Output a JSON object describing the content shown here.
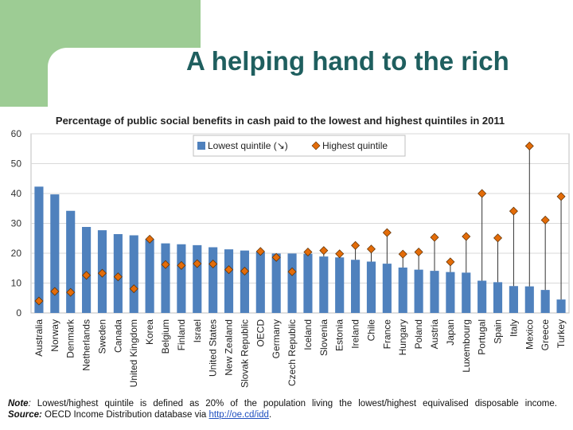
{
  "slide": {
    "title": "A helping hand to the rich",
    "accent_color": "#9dcc94",
    "title_color": "#1f5f5f"
  },
  "chart_data": {
    "type": "bar",
    "title": "Percentage of public social benefits in cash paid to the lowest and highest quintiles in 2011",
    "ylim": [
      0,
      60
    ],
    "yticks": [
      0,
      10,
      20,
      30,
      40,
      50,
      60
    ],
    "grid": true,
    "legend_position": "top-center",
    "categories": [
      "Australia",
      "Norway",
      "Denmark",
      "Netherlands",
      "Sweden",
      "Canada",
      "United Kingdom",
      "Korea",
      "Belgium",
      "Finland",
      "Israel",
      "United States",
      "New Zealand",
      "Slovak Republic",
      "OECD",
      "Germany",
      "Czech Republic",
      "Iceland",
      "Slovenia",
      "Estonia",
      "Ireland",
      "Chile",
      "France",
      "Hungary",
      "Poland",
      "Austria",
      "Japan",
      "Luxembourg",
      "Portugal",
      "Spain",
      "Italy",
      "Mexico",
      "Greece",
      "Turkey"
    ],
    "series": [
      {
        "name": "Lowest quintile (↘)",
        "kind": "bar",
        "color": "#4f81bd",
        "values": [
          42.3,
          39.7,
          34.2,
          28.8,
          27.7,
          26.4,
          26.0,
          24.8,
          23.3,
          23.0,
          22.7,
          22.0,
          21.3,
          20.9,
          20.5,
          19.9,
          19.9,
          19.8,
          18.9,
          18.6,
          17.8,
          17.2,
          16.5,
          15.2,
          14.5,
          14.1,
          13.7,
          13.5,
          10.8,
          10.3,
          9.0,
          8.9,
          7.7,
          4.5
        ]
      },
      {
        "name": "Highest quintile",
        "kind": "marker",
        "color": "#e36c09",
        "values": [
          4.0,
          7.2,
          6.9,
          12.6,
          13.3,
          12.1,
          8.1,
          24.7,
          16.2,
          15.9,
          16.5,
          16.4,
          14.5,
          14.0,
          20.6,
          18.6,
          13.8,
          20.4,
          20.9,
          19.8,
          22.6,
          21.4,
          26.9,
          19.7,
          20.4,
          25.3,
          17.1,
          25.6,
          40.0,
          25.1,
          34.1,
          55.9,
          31.1,
          39.0
        ]
      }
    ]
  },
  "footnote": {
    "note_label": "Note",
    "note_words": [
      "Lowest/highest",
      "quintile",
      "is",
      "defined",
      "as",
      "20%",
      "of",
      "the",
      "population",
      "living",
      "the",
      "lowest/highest",
      "equivalised",
      "disposable",
      "income."
    ],
    "source_label": "Source:",
    "source_text": "OECD Income Distribution database via ",
    "source_link": "http://oe.cd/idd",
    "source_end": "."
  }
}
